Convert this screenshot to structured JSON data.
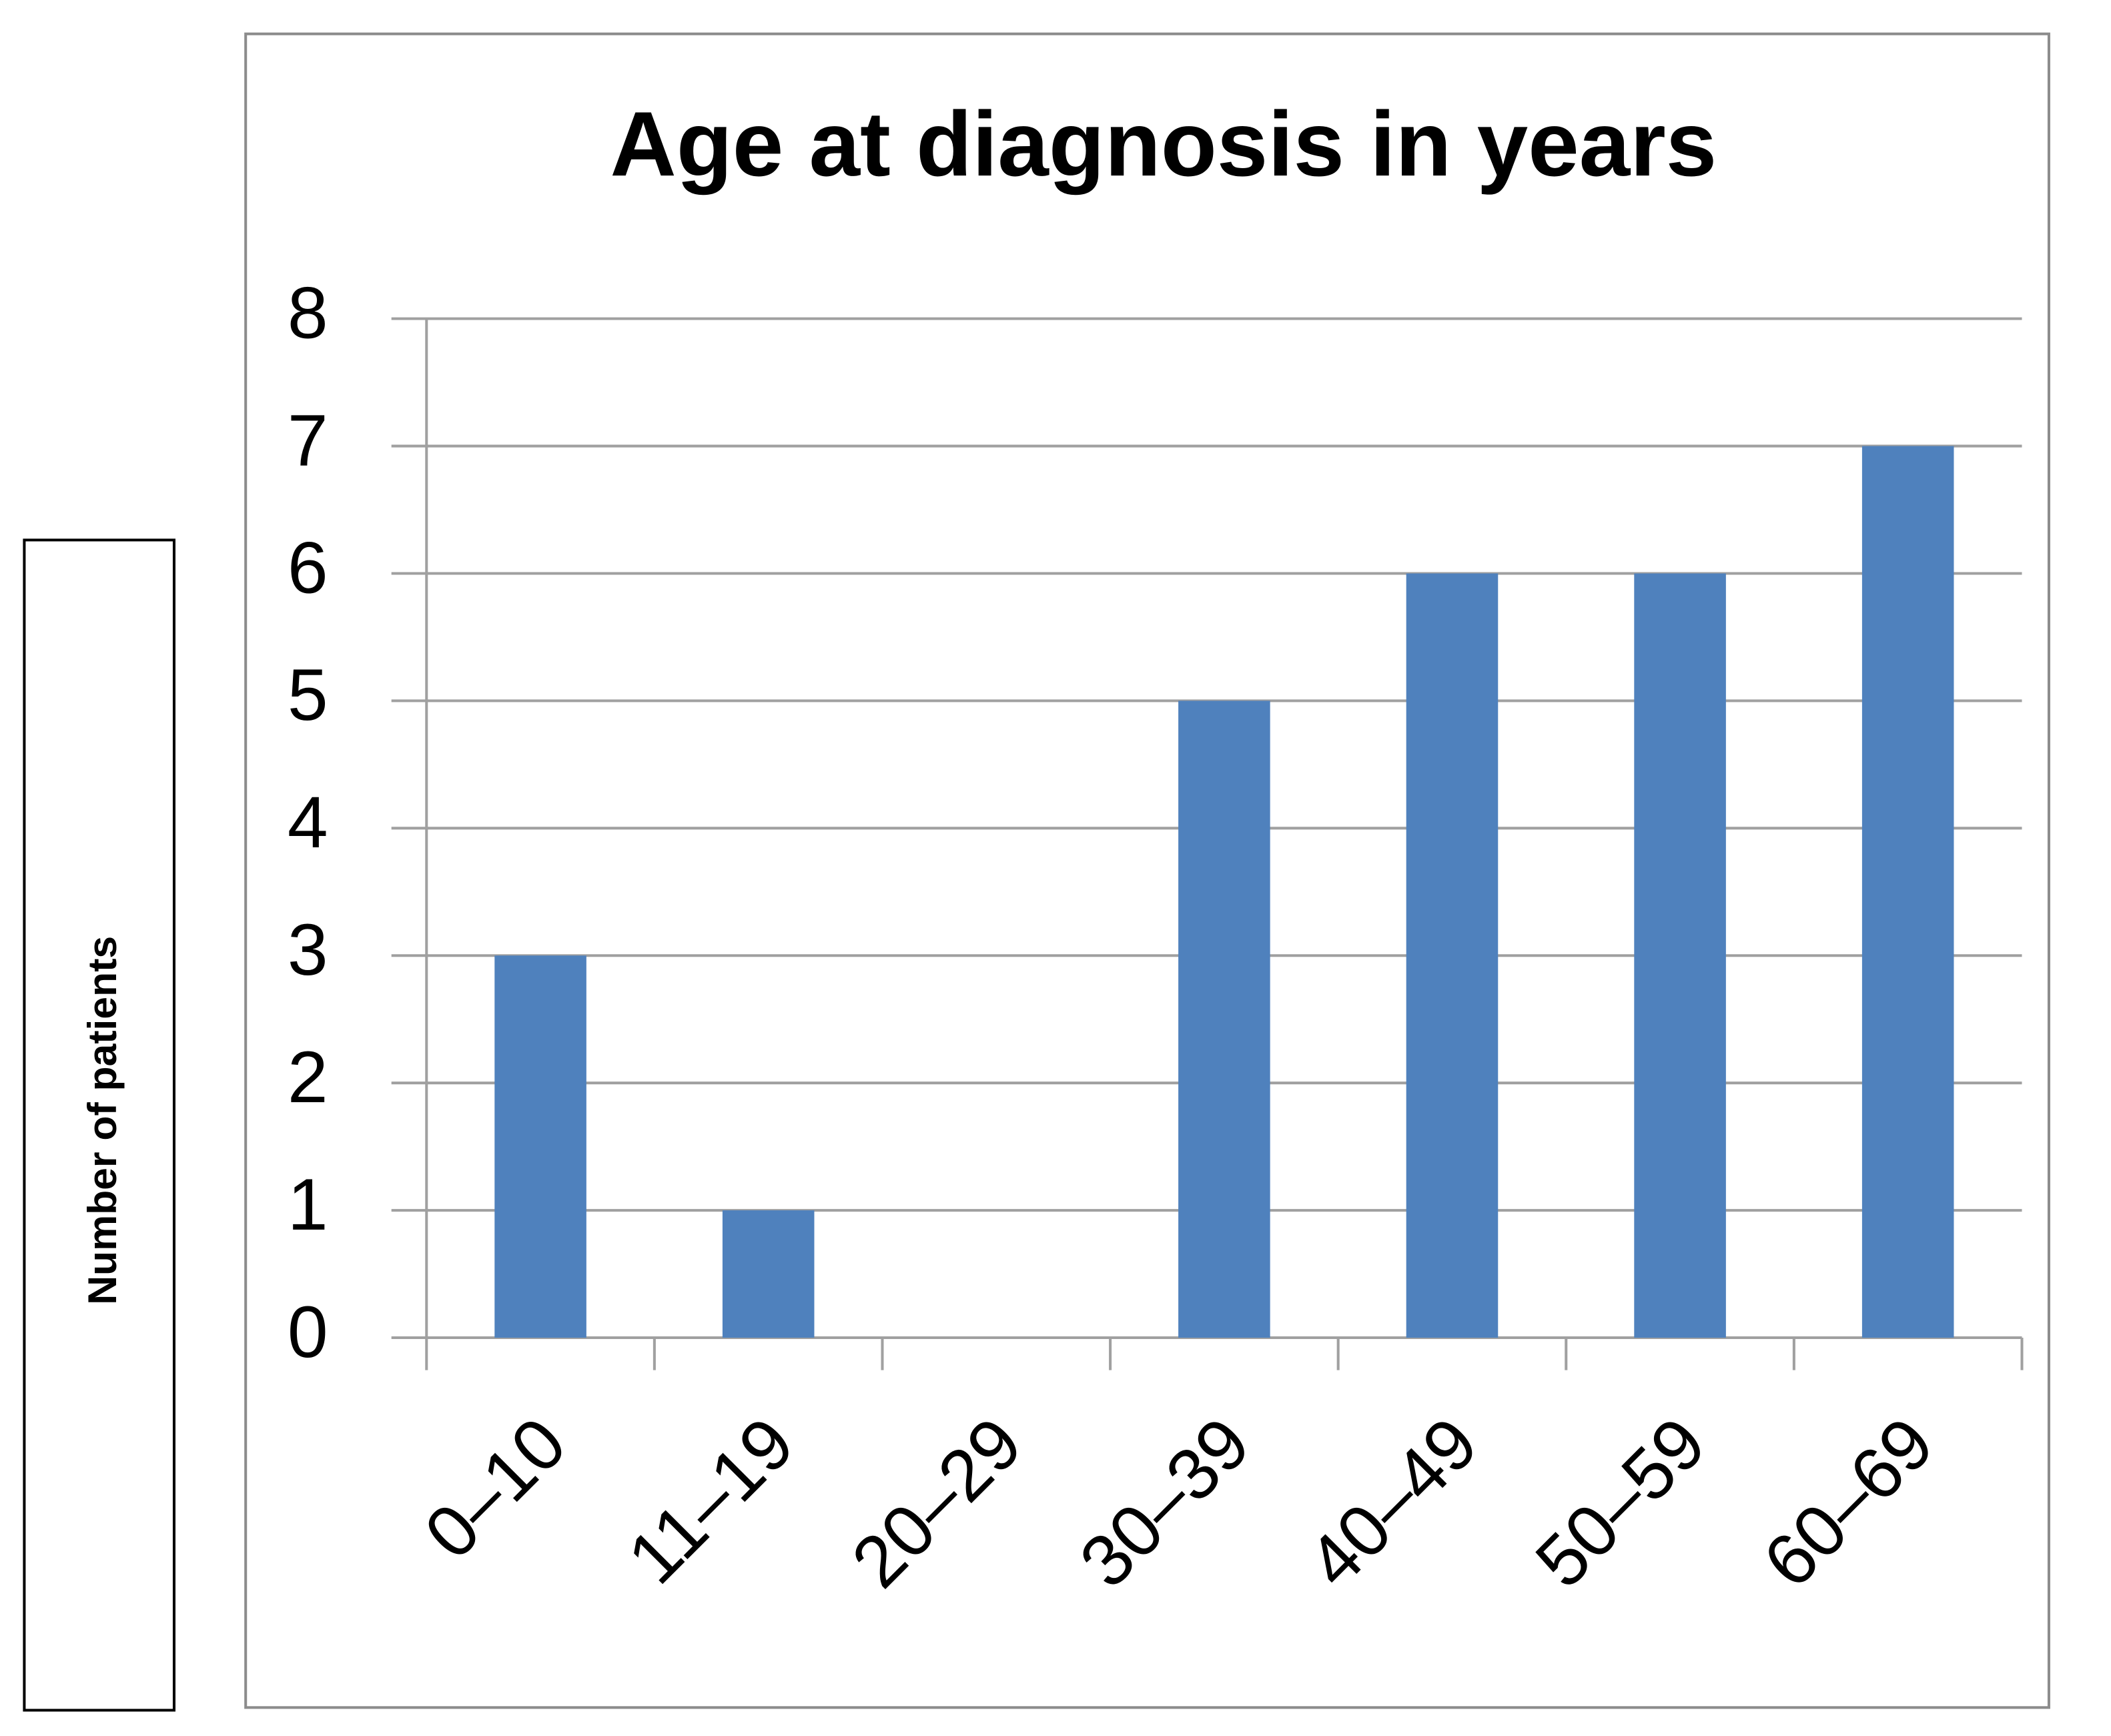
{
  "chart_data": {
    "type": "bar",
    "title": "Age at diagnosis in years",
    "y_label": "Number of patients",
    "categories": [
      "0–10",
      "11–19",
      "20–29",
      "30–39",
      "40–49",
      "50–59",
      "60–69"
    ],
    "values": [
      3,
      1,
      0,
      5,
      6,
      6,
      7
    ],
    "color": "#4f81bd",
    "ylim": [
      0,
      8
    ],
    "yticks": [
      0,
      1,
      2,
      3,
      4,
      5,
      6,
      7,
      8
    ],
    "grid": true
  }
}
